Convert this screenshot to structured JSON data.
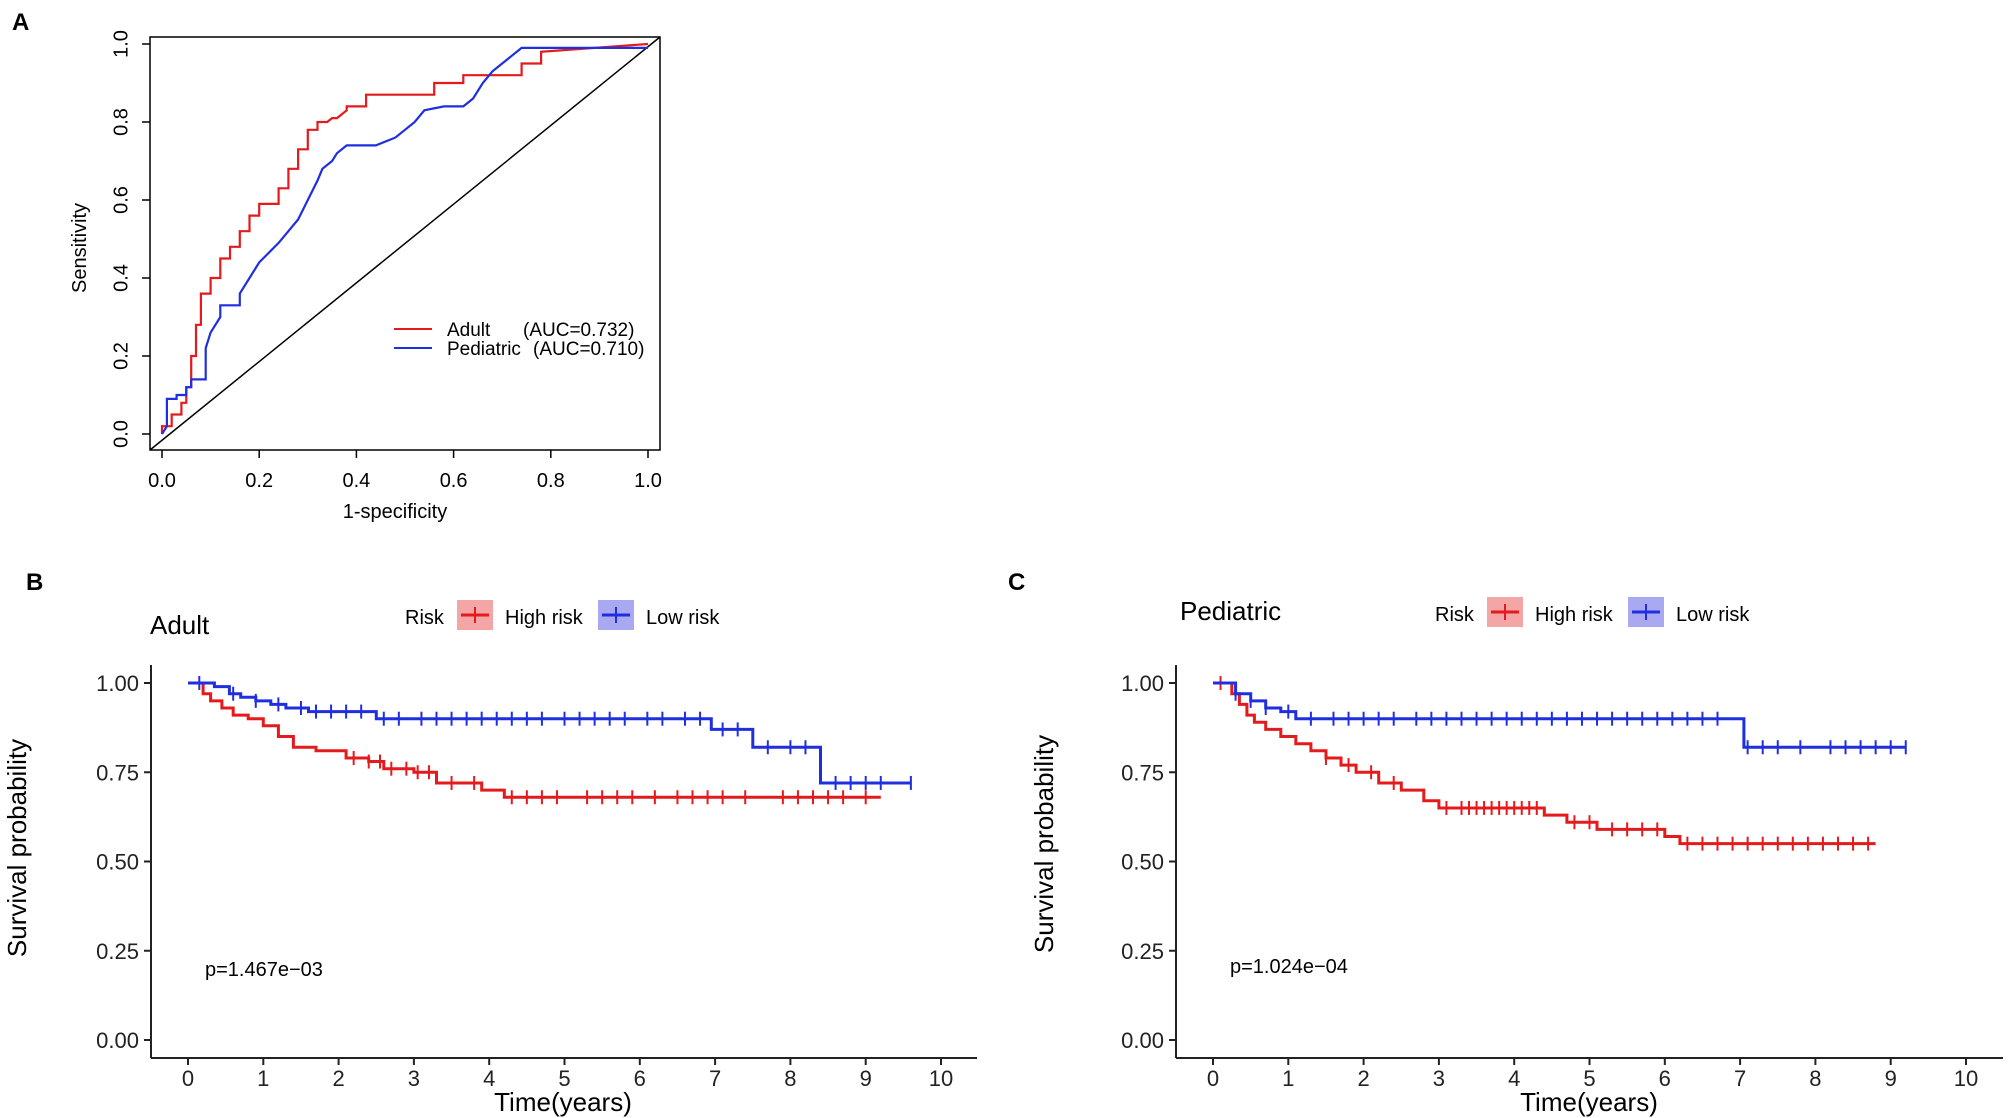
{
  "chart_data": [
    {
      "panel": "A",
      "type": "line",
      "title": "",
      "xlabel": "1-specificity",
      "ylabel": "Sensitivity",
      "xlim": [
        0,
        1
      ],
      "ylim": [
        0,
        1
      ],
      "xticks": [
        "0.0",
        "0.2",
        "0.4",
        "0.6",
        "0.8",
        "1.0"
      ],
      "yticks": [
        "0.0",
        "0.2",
        "0.4",
        "0.6",
        "0.8",
        "1.0"
      ],
      "legend_placement": "bottom-right",
      "series": [
        {
          "name": "Adult",
          "auc_label": "(AUC=0.732)",
          "color": "#e41a1c",
          "x": [
            0,
            0,
            0.02,
            0.02,
            0.04,
            0.04,
            0.05,
            0.05,
            0.06,
            0.06,
            0.07,
            0.07,
            0.08,
            0.08,
            0.1,
            0.1,
            0.12,
            0.12,
            0.14,
            0.14,
            0.16,
            0.16,
            0.18,
            0.18,
            0.2,
            0.2,
            0.24,
            0.24,
            0.26,
            0.26,
            0.28,
            0.28,
            0.3,
            0.3,
            0.32,
            0.32,
            0.34,
            0.35,
            0.36,
            0.38,
            0.38,
            0.42,
            0.42,
            0.56,
            0.56,
            0.62,
            0.62,
            0.74,
            0.74,
            0.78,
            0.78,
            1.0
          ],
          "y": [
            0,
            0.02,
            0.02,
            0.05,
            0.05,
            0.08,
            0.08,
            0.12,
            0.12,
            0.2,
            0.2,
            0.28,
            0.28,
            0.36,
            0.36,
            0.4,
            0.4,
            0.45,
            0.45,
            0.48,
            0.48,
            0.52,
            0.52,
            0.56,
            0.56,
            0.59,
            0.59,
            0.63,
            0.63,
            0.68,
            0.68,
            0.73,
            0.73,
            0.78,
            0.78,
            0.8,
            0.8,
            0.81,
            0.81,
            0.83,
            0.84,
            0.84,
            0.87,
            0.87,
            0.9,
            0.9,
            0.92,
            0.92,
            0.95,
            0.95,
            0.98,
            1.0
          ]
        },
        {
          "name": "Pediatric",
          "auc_label": "(AUC=0.710)",
          "color": "#1f2fe0",
          "x": [
            0,
            0.01,
            0.01,
            0.03,
            0.03,
            0.05,
            0.05,
            0.06,
            0.06,
            0.09,
            0.09,
            0.1,
            0.12,
            0.12,
            0.14,
            0.16,
            0.16,
            0.18,
            0.2,
            0.24,
            0.28,
            0.3,
            0.32,
            0.33,
            0.35,
            0.36,
            0.38,
            0.4,
            0.42,
            0.44,
            0.48,
            0.5,
            0.52,
            0.54,
            0.58,
            0.62,
            0.64,
            0.66,
            0.68,
            0.7,
            0.72,
            0.74,
            0.76,
            0.8,
            0.86,
            0.9,
            0.94,
            0.96,
            1.0
          ],
          "y": [
            0,
            0.02,
            0.09,
            0.09,
            0.1,
            0.1,
            0.12,
            0.12,
            0.14,
            0.14,
            0.22,
            0.26,
            0.3,
            0.33,
            0.33,
            0.33,
            0.36,
            0.4,
            0.44,
            0.49,
            0.55,
            0.6,
            0.65,
            0.68,
            0.7,
            0.72,
            0.74,
            0.74,
            0.74,
            0.74,
            0.76,
            0.78,
            0.8,
            0.83,
            0.84,
            0.84,
            0.86,
            0.9,
            0.93,
            0.95,
            0.97,
            0.99,
            0.99,
            0.99,
            0.99,
            0.99,
            0.99,
            0.99,
            0.99
          ]
        }
      ],
      "reference_line": {
        "x": [
          0,
          1
        ],
        "y": [
          0,
          1
        ]
      }
    },
    {
      "panel": "B",
      "type": "line",
      "title": "Adult",
      "xlabel": "Time(years)",
      "ylabel": "Survival probability",
      "xlim": [
        0,
        10
      ],
      "ylim": [
        0,
        1
      ],
      "xticks": [
        "0",
        "1",
        "2",
        "3",
        "4",
        "5",
        "6",
        "7",
        "8",
        "9",
        "10"
      ],
      "yticks": [
        "0.00",
        "0.25",
        "0.50",
        "0.75",
        "1.00"
      ],
      "legend_title": "Risk",
      "legend_placement": "top",
      "pvalue": "p=1.467e−03",
      "series": [
        {
          "name": "High risk",
          "color": "#e41a1c",
          "x": [
            0,
            0.2,
            0.3,
            0.45,
            0.6,
            0.8,
            1.0,
            1.2,
            1.4,
            1.7,
            2.1,
            2.4,
            2.6,
            3.0,
            3.3,
            3.9,
            4.2,
            9.2
          ],
          "y": [
            1.0,
            0.97,
            0.95,
            0.93,
            0.91,
            0.9,
            0.88,
            0.85,
            0.82,
            0.81,
            0.79,
            0.78,
            0.76,
            0.75,
            0.72,
            0.7,
            0.68,
            0.68
          ],
          "censor_x": [
            2.2,
            2.4,
            2.55,
            2.7,
            2.9,
            3.05,
            3.2,
            3.5,
            3.8,
            4.3,
            4.5,
            4.7,
            4.9,
            5.3,
            5.5,
            5.7,
            5.9,
            6.2,
            6.5,
            6.7,
            6.9,
            7.1,
            7.4,
            7.9,
            8.1,
            8.3,
            8.5,
            8.7,
            9.0
          ]
        },
        {
          "name": "Low risk",
          "color": "#1f2fe0",
          "x": [
            0,
            0.35,
            0.55,
            0.7,
            0.9,
            1.1,
            1.3,
            1.6,
            2.5,
            6.95,
            7.5,
            8.4,
            9.6
          ],
          "y": [
            1.0,
            0.99,
            0.97,
            0.96,
            0.95,
            0.94,
            0.93,
            0.92,
            0.9,
            0.87,
            0.82,
            0.72,
            0.72
          ],
          "censor_x": [
            0.15,
            0.6,
            0.9,
            1.2,
            1.5,
            1.7,
            1.9,
            2.1,
            2.3,
            2.6,
            2.8,
            3.1,
            3.3,
            3.5,
            3.7,
            3.9,
            4.1,
            4.3,
            4.5,
            4.7,
            5.0,
            5.2,
            5.4,
            5.6,
            5.8,
            6.1,
            6.3,
            6.6,
            6.8,
            7.1,
            7.3,
            7.7,
            8.0,
            8.2,
            8.6,
            8.8,
            9.0,
            9.2,
            9.6
          ]
        }
      ]
    },
    {
      "panel": "C",
      "type": "line",
      "title": "Pediatric",
      "xlabel": "Time(years)",
      "ylabel": "Survival probability",
      "xlim": [
        0,
        10
      ],
      "ylim": [
        0,
        1
      ],
      "xticks": [
        "0",
        "1",
        "2",
        "3",
        "4",
        "5",
        "6",
        "7",
        "8",
        "9",
        "10"
      ],
      "yticks": [
        "0.00",
        "0.25",
        "0.50",
        "0.75",
        "1.00"
      ],
      "legend_title": "Risk",
      "legend_placement": "top",
      "pvalue": "p=1.024e−04",
      "series": [
        {
          "name": "High risk",
          "color": "#e41a1c",
          "x": [
            0,
            0.25,
            0.35,
            0.45,
            0.55,
            0.7,
            0.9,
            1.1,
            1.3,
            1.5,
            1.7,
            1.9,
            2.2,
            2.5,
            2.8,
            3.0,
            4.4,
            4.7,
            5.1,
            6.0,
            6.2,
            8.8
          ],
          "y": [
            1.0,
            0.97,
            0.94,
            0.91,
            0.89,
            0.87,
            0.85,
            0.83,
            0.81,
            0.79,
            0.77,
            0.75,
            0.72,
            0.7,
            0.67,
            0.65,
            0.63,
            0.61,
            0.59,
            0.57,
            0.55,
            0.55
          ],
          "censor_x": [
            0.1,
            1.5,
            1.8,
            2.1,
            2.4,
            3.1,
            3.3,
            3.4,
            3.5,
            3.6,
            3.7,
            3.8,
            3.9,
            4.0,
            4.1,
            4.2,
            4.3,
            4.8,
            5.0,
            5.3,
            5.5,
            5.7,
            5.9,
            6.3,
            6.5,
            6.7,
            6.9,
            7.1,
            7.3,
            7.5,
            7.7,
            7.9,
            8.1,
            8.3,
            8.5,
            8.7
          ]
        },
        {
          "name": "Low risk",
          "color": "#1f2fe0",
          "x": [
            0,
            0.3,
            0.5,
            0.7,
            0.9,
            1.1,
            7.05,
            9.2
          ],
          "y": [
            1.0,
            0.97,
            0.95,
            0.93,
            0.92,
            0.9,
            0.82,
            0.82
          ],
          "censor_x": [
            0.3,
            0.5,
            0.7,
            1.0,
            1.3,
            1.6,
            1.8,
            2.0,
            2.2,
            2.4,
            2.7,
            2.9,
            3.1,
            3.3,
            3.5,
            3.7,
            3.9,
            4.1,
            4.3,
            4.5,
            4.7,
            4.9,
            5.1,
            5.3,
            5.5,
            5.7,
            5.9,
            6.1,
            6.3,
            6.5,
            6.7,
            7.1,
            7.3,
            7.5,
            7.8,
            8.2,
            8.4,
            8.6,
            8.8,
            9.0,
            9.2
          ]
        }
      ]
    }
  ],
  "panels": {
    "A": {
      "letter": "A",
      "legend": [
        {
          "name": "Adult",
          "auc": "(AUC=0.732)"
        },
        {
          "name": "Pediatric",
          "auc": "(AUC=0.710)"
        }
      ],
      "xlabel": "1-specificity",
      "ylabel": "Sensitivity"
    },
    "B": {
      "letter": "B",
      "title": "Adult",
      "legend_title": "Risk",
      "legend": [
        "High risk",
        "Low risk"
      ],
      "xlabel": "Time(years)",
      "ylabel": "Survival probability",
      "pvalue": "p=1.467e−03"
    },
    "C": {
      "letter": "C",
      "title": "Pediatric",
      "legend_title": "Risk",
      "legend": [
        "High risk",
        "Low risk"
      ],
      "xlabel": "Time(years)",
      "ylabel": "Survival probability",
      "pvalue": "p=1.024e−04"
    }
  }
}
